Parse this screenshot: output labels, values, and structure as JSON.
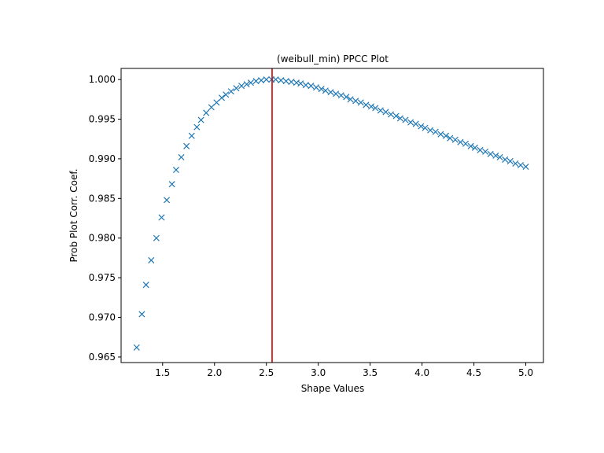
{
  "chart_data": {
    "type": "scatter",
    "title": "(weibull_min) PPCC Plot",
    "xlabel": "Shape Values",
    "ylabel": "Prob Plot Corr. Coef.",
    "xlim": [
      1.1,
      5.17
    ],
    "ylim": [
      0.9643,
      1.0014
    ],
    "xticks": [
      "1.5",
      "2.0",
      "2.5",
      "3.0",
      "3.5",
      "4.0",
      "4.5",
      "5.0"
    ],
    "yticks": [
      "0.965",
      "0.970",
      "0.975",
      "0.980",
      "0.985",
      "0.990",
      "0.995",
      "1.000"
    ],
    "grid": false,
    "marker": "x",
    "marker_color": "#1f77b4",
    "vline": {
      "x": 2.555,
      "color": "#cc0000"
    },
    "series": [
      {
        "x": [
          1.25,
          1.3,
          1.34,
          1.39,
          1.44,
          1.49,
          1.54,
          1.59,
          1.63,
          1.68,
          1.73,
          1.78,
          1.83,
          1.87,
          1.92,
          1.97,
          2.02,
          2.07,
          2.11,
          2.16,
          2.21,
          2.26,
          2.31,
          2.35,
          2.4,
          2.45,
          2.5,
          2.55,
          2.59,
          2.64,
          2.69,
          2.74,
          2.79,
          2.83,
          2.88,
          2.93,
          2.98,
          3.03,
          3.07,
          3.12,
          3.17,
          3.22,
          3.27,
          3.31,
          3.36,
          3.41,
          3.46,
          3.51,
          3.55,
          3.6,
          3.65,
          3.7,
          3.75,
          3.79,
          3.84,
          3.89,
          3.94,
          3.99,
          4.03,
          4.08,
          4.13,
          4.18,
          4.23,
          4.27,
          4.32,
          4.37,
          4.42,
          4.47,
          4.51,
          4.56,
          4.61,
          4.66,
          4.71,
          4.75,
          4.8,
          4.85,
          4.9,
          4.95,
          5.0
        ],
        "y": [
          0.9662,
          0.9704,
          0.9741,
          0.9772,
          0.98,
          0.9826,
          0.9848,
          0.9868,
          0.9886,
          0.9902,
          0.9916,
          0.9929,
          0.994,
          0.9949,
          0.9958,
          0.9965,
          0.9971,
          0.9977,
          0.9981,
          0.9985,
          0.9989,
          0.9992,
          0.9994,
          0.9996,
          0.9998,
          0.9999,
          1.0,
          1.0,
          1.0,
          0.9999,
          0.9998,
          0.9997,
          0.9996,
          0.9995,
          0.9993,
          0.9992,
          0.999,
          0.9988,
          0.9986,
          0.9984,
          0.9982,
          0.998,
          0.9978,
          0.9975,
          0.9973,
          0.9971,
          0.9968,
          0.9966,
          0.9964,
          0.9961,
          0.9959,
          0.9956,
          0.9954,
          0.9951,
          0.9949,
          0.9946,
          0.9944,
          0.9941,
          0.9939,
          0.9936,
          0.9934,
          0.9931,
          0.9929,
          0.9926,
          0.9924,
          0.9921,
          0.9919,
          0.9916,
          0.9914,
          0.9911,
          0.9909,
          0.9906,
          0.9904,
          0.9902,
          0.9899,
          0.9897,
          0.9894,
          0.9892,
          0.989
        ]
      }
    ]
  }
}
